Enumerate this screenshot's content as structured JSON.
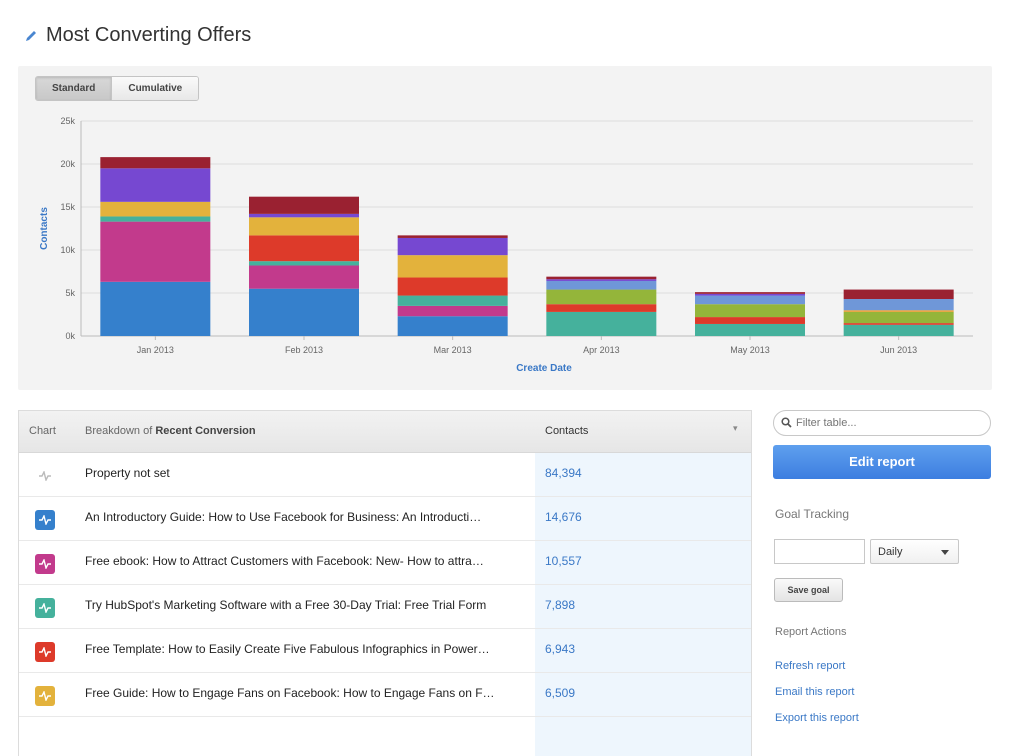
{
  "page": {
    "title": "Most Converting Offers"
  },
  "chart_toggle": {
    "standard": "Standard",
    "cumulative": "Cumulative",
    "active": "Standard"
  },
  "chart_data": {
    "type": "bar",
    "stacked": true,
    "ylabel": "Contacts",
    "xlabel": "Create Date",
    "ylim": [
      0,
      25000
    ],
    "yticks": [
      "0k",
      "5k",
      "10k",
      "15k",
      "20k",
      "25k"
    ],
    "categories": [
      "Jan 2013",
      "Feb 2013",
      "Mar 2013",
      "Apr 2013",
      "May 2013",
      "Jun 2013"
    ],
    "segments": [
      {
        "color": "#3580cc",
        "values": [
          6300,
          5500,
          2300,
          0,
          0,
          0
        ]
      },
      {
        "color": "#c23a8c",
        "values": [
          7000,
          2700,
          1200,
          0,
          0,
          0
        ]
      },
      {
        "color": "#45b19c",
        "values": [
          600,
          500,
          1200,
          2800,
          1400,
          1300
        ]
      },
      {
        "color": "#dd3a2a",
        "values": [
          0,
          3000,
          2100,
          900,
          800,
          200
        ]
      },
      {
        "color": "#e3b23c",
        "values": [
          1700,
          2100,
          2600,
          0,
          0,
          0
        ]
      },
      {
        "color": "#94b53a",
        "values": [
          0,
          0,
          0,
          1700,
          1500,
          1300
        ]
      },
      {
        "color": "#e8a23a",
        "values": [
          0,
          0,
          0,
          0,
          0,
          200
        ]
      },
      {
        "color": "#6f97d8",
        "values": [
          0,
          0,
          0,
          1000,
          1000,
          1300
        ]
      },
      {
        "color": "#7648d1",
        "values": [
          3900,
          400,
          2000,
          200,
          200,
          0
        ]
      },
      {
        "color": "#9a2131",
        "values": [
          1300,
          2000,
          300,
          300,
          200,
          1100
        ]
      }
    ],
    "grid": true,
    "legend": "none"
  },
  "table": {
    "col_chart": "Chart",
    "col_breakdown_prefix": "Breakdown of",
    "col_breakdown_field": "Recent Conversion",
    "col_contacts": "Contacts",
    "rows": [
      {
        "name": "Property not set",
        "contacts": "84,394",
        "icon_color": "#ffffff",
        "icon_name": "activity-icon"
      },
      {
        "name": "An Introductory Guide: How to Use Facebook for Business: An Introducti…",
        "contacts": "14,676",
        "icon_color": "#3580cc",
        "icon_name": "activity-icon"
      },
      {
        "name": "Free ebook: How to Attract Customers with Facebook: New- How to attra…",
        "contacts": "10,557",
        "icon_color": "#c23a8c",
        "icon_name": "activity-icon"
      },
      {
        "name": "Try HubSpot's Marketing Software with a Free 30-Day Trial: Free Trial Form",
        "contacts": "7,898",
        "icon_color": "#45b19c",
        "icon_name": "activity-icon"
      },
      {
        "name": "Free Template: How to Easily Create Five Fabulous Infographics in Power…",
        "contacts": "6,943",
        "icon_color": "#dd3a2a",
        "icon_name": "activity-icon"
      },
      {
        "name": "Free Guide: How to Engage Fans on Facebook: How to Engage Fans on F…",
        "contacts": "6,509",
        "icon_color": "#e3b23c",
        "icon_name": "activity-icon"
      }
    ]
  },
  "sidebar": {
    "filter_placeholder": "Filter table...",
    "edit_report": "Edit report",
    "goal_tracking": "Goal Tracking",
    "goal_period": "Daily",
    "save_goal": "Save goal",
    "report_actions": "Report Actions",
    "refresh": "Refresh report",
    "email": "Email this report",
    "export": "Export this report"
  }
}
